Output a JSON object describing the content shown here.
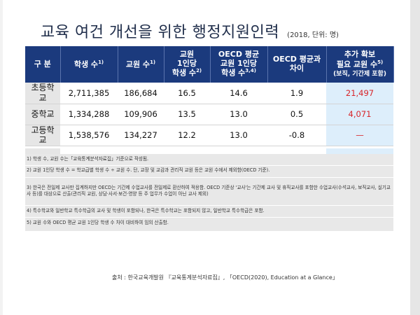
{
  "title": "교육 여건 개선을 위한 행정지원인력",
  "title_note": "(2018, 단위: 명)",
  "table": {
    "headers": {
      "division": "구 분",
      "students": "학생 수",
      "students_sup": "1)",
      "teachers": "교원 수",
      "teachers_sup": "1)",
      "per_teacher_l1": "교원",
      "per_teacher_l2": "1인당",
      "per_teacher_l3": "학생 수",
      "per_teacher_sup": "2)",
      "oecd_l1": "OECD 평균",
      "oecd_l2": "교원 1인당",
      "oecd_l3": "학생 수",
      "oecd_sup": "3,4)",
      "diff_l1": "OECD 평균과",
      "diff_l2": "차이",
      "extra_l1": "추가 확보",
      "extra_l2": "필요 교원 수",
      "extra_sup": "5)",
      "extra_l3": "(보직, 기간제 포함)"
    },
    "rows": [
      {
        "label": "초등학교",
        "label_l1": "초등학",
        "label_l2": "교",
        "students": "2,711,385",
        "teachers": "186,684",
        "per_teacher": "16.5",
        "oecd": "14.6",
        "diff": "1.9",
        "extra": "21,497"
      },
      {
        "label": "중학교",
        "label_l1": "중학교",
        "label_l2": "",
        "students": "1,334,288",
        "teachers": "109,906",
        "per_teacher": "13.5",
        "oecd": "13.0",
        "diff": "0.5",
        "extra": "4,071"
      },
      {
        "label": "고등학교",
        "label_l1": "고등학",
        "label_l2": "교",
        "students": "1,538,576",
        "teachers": "134,227",
        "per_teacher": "12.2",
        "oecd": "13.0",
        "diff": "-0.8",
        "extra": "—"
      }
    ]
  },
  "notes": [
    "1) 학생 수, 교원 수는「교육통계분석자료집」기준으로 작성됨.",
    "2) 교원 1인당 학생 수 = 학교급별 학생 수 ÷ 교원 수. 단, 교장 및 교감과 관리직 교원 등은 교원 수에서 제외함(OECD 기준).",
    "3) 한국은 전일제 교사만 집계하지만 OECD는 기간제 수업교사를 전일제로 환산하여 적용함. OECD 기준상 '교사'는 기간제 교사 및 휴직교사를 포함한 수업교사(수석교사, 보직교사, 실기교사 등)를 대상으로 산출(관리직 교원, 상담·사서·보건·영양 등 주 업무가 수업이 아닌 교사 제외)",
    "4) 특수학교와 일반학교 특수학급의 교사 및 학생이 포함되나, 한국은 특수학교는 포함되지 않고, 일반학교 특수학급은 포함.",
    "5) 교원 수와 OECD 평균 교원 1인당 학생 수 차이 대비하여 임의 산출함."
  ],
  "source": "출처 : 한국교육개발원 『교육통계분석자료집』, 「OECD(2020), Education at a Glance」",
  "colors": {
    "header_bg": "#1b3a7d",
    "highlight_bg": "#ddeefb",
    "highlight_text": "#d8252a",
    "label_bg": "#e6e6e6",
    "title_color": "#1f2d4a"
  }
}
